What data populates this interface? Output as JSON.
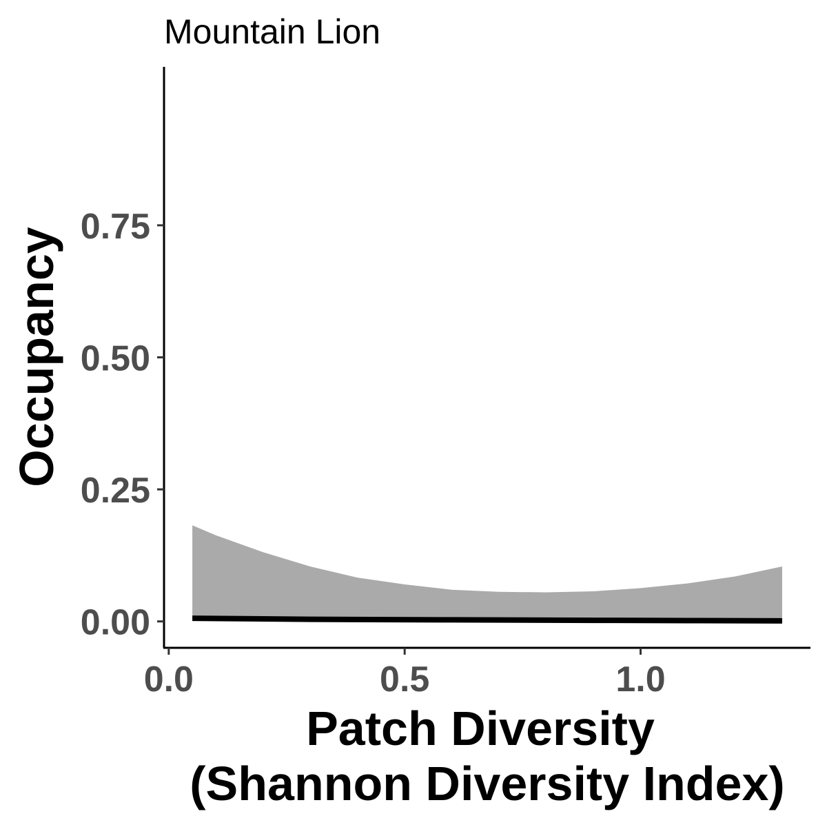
{
  "chart_data": {
    "type": "line",
    "title": "Mountain Lion",
    "xlabel": [
      "Patch Diversity",
      "(Shannon Diversity Index)"
    ],
    "ylabel": "Occupancy",
    "xlim": [
      -0.01,
      1.36
    ],
    "ylim": [
      -0.05,
      1.05
    ],
    "x_ticks": [
      0.0,
      0.5,
      1.0
    ],
    "x_tick_labels": [
      "0.0",
      "0.5",
      "1.0"
    ],
    "y_ticks": [
      0.0,
      0.25,
      0.5,
      0.75
    ],
    "y_tick_labels": [
      "0.00",
      "0.25",
      "0.50",
      "0.75"
    ],
    "grid": false,
    "series": [
      {
        "kind": "ribbon",
        "color": "#aaaaaa",
        "x": [
          0.05,
          0.1,
          0.2,
          0.3,
          0.4,
          0.5,
          0.6,
          0.7,
          0.8,
          0.9,
          1.0,
          1.1,
          1.2,
          1.3
        ],
        "lower": [
          0.005,
          0.004,
          0.004,
          0.003,
          0.003,
          0.003,
          0.002,
          0.002,
          0.002,
          0.002,
          0.001,
          0.001,
          0.001,
          0.001
        ],
        "upper": [
          0.182,
          0.163,
          0.131,
          0.104,
          0.083,
          0.07,
          0.06,
          0.056,
          0.055,
          0.057,
          0.063,
          0.072,
          0.085,
          0.104
        ]
      },
      {
        "kind": "line",
        "color": "#000000",
        "x": [
          0.05,
          0.3,
          0.6,
          0.9,
          1.1,
          1.3
        ],
        "y": [
          0.006,
          0.004,
          0.003,
          0.002,
          0.0015,
          0.001
        ]
      }
    ]
  }
}
